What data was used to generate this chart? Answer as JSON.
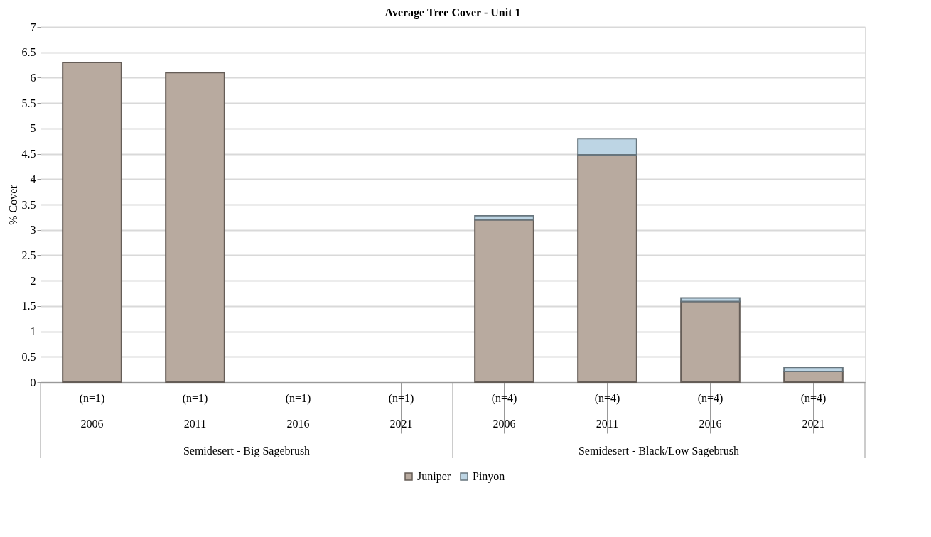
{
  "chart_data": {
    "type": "bar",
    "title": "Average Tree Cover - Unit 1",
    "ylabel": "% Cover",
    "categories": [
      "(n=1)\n2006",
      "(n=1)\n2011",
      "(n=1)\n2016",
      "(n=1)\n2021",
      "(n=4)\n2006",
      "(n=4)\n2011",
      "(n=4)\n2016",
      "(n=4)\n2021"
    ],
    "series": [
      {
        "name": "Juniper",
        "color": "#b8aa9f",
        "values": [
          6.3,
          6.1,
          0,
          0,
          3.2,
          4.48,
          1.59,
          0.21
        ]
      },
      {
        "name": "Pinyon",
        "color": "#bdd5e4",
        "values": [
          0,
          0,
          0,
          0,
          0.08,
          0.32,
          0.07,
          0.08
        ]
      }
    ],
    "stacked": true,
    "annotations": [
      "Semidesert - Big Sagebrush",
      "Semidesert - Black/Low Sagebrush"
    ],
    "ylim": [
      0,
      7
    ],
    "yticks": [
      0,
      0.5,
      1,
      1.5,
      2,
      2.5,
      3,
      3.5,
      4,
      4.5,
      5,
      5.5,
      6,
      6.5,
      7
    ],
    "grid": "y",
    "legend": "bottom"
  }
}
